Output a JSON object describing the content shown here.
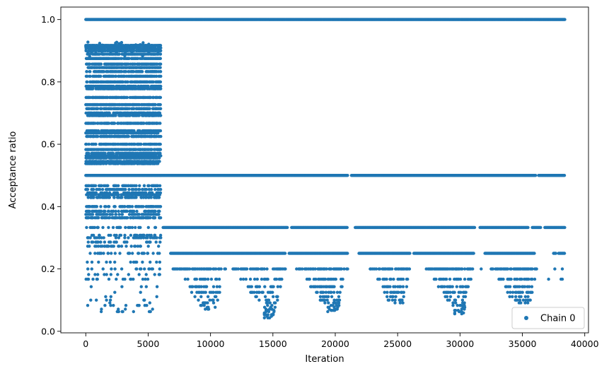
{
  "chart_data": {
    "type": "scatter",
    "title": "",
    "xlabel": "Iteration",
    "ylabel": "Acceptance ratio",
    "xlim": [
      -2000,
      40300
    ],
    "ylim": [
      -0.005,
      1.04
    ],
    "xticks": [
      0,
      5000,
      10000,
      15000,
      20000,
      25000,
      30000,
      35000,
      40000
    ],
    "xtick_labels": [
      "0",
      "5000",
      "10000",
      "15000",
      "20000",
      "25000",
      "30000",
      "35000",
      "40000"
    ],
    "yticks": [
      0.0,
      0.2,
      0.4,
      0.6,
      0.8,
      1.0
    ],
    "ytick_labels": [
      "0.0",
      "0.2",
      "0.4",
      "0.6",
      "0.8",
      "1.0"
    ],
    "grid": false,
    "legend": {
      "position": "bottom-right",
      "entries": [
        "Chain 0"
      ]
    },
    "series": [
      {
        "name": "Chain 0",
        "color": "#1f77b4",
        "marker": "circle",
        "iterations": [
          0,
          38400
        ],
        "levels_iter_0_6000": [
          1.0,
          0.917,
          0.909,
          0.9,
          0.889,
          0.875,
          0.857,
          0.846,
          0.833,
          0.818,
          0.8,
          0.786,
          0.778,
          0.75,
          0.727,
          0.714,
          0.7,
          0.692,
          0.667,
          0.643,
          0.636,
          0.625,
          0.6,
          0.583,
          0.571,
          0.563,
          0.556,
          0.545,
          0.538,
          0.5,
          0.467,
          0.455,
          0.444,
          0.438,
          0.429,
          0.4,
          0.385,
          0.375,
          0.364,
          0.333,
          0.308,
          0.3,
          0.286,
          0.273,
          0.25,
          0.222,
          0.2,
          0.182,
          0.167,
          0.143,
          0.125,
          0.111,
          0.1,
          0.091,
          0.083,
          0.071,
          0.063
        ],
        "levels_iter_6000_38400": [
          1.0,
          0.5,
          0.333,
          0.25,
          0.2,
          0.167,
          0.143,
          0.125,
          0.111,
          0.1,
          0.091,
          0.083,
          0.077,
          0.071,
          0.067,
          0.063,
          0.059,
          0.056,
          0.053,
          0.048,
          0.043
        ]
      }
    ]
  }
}
